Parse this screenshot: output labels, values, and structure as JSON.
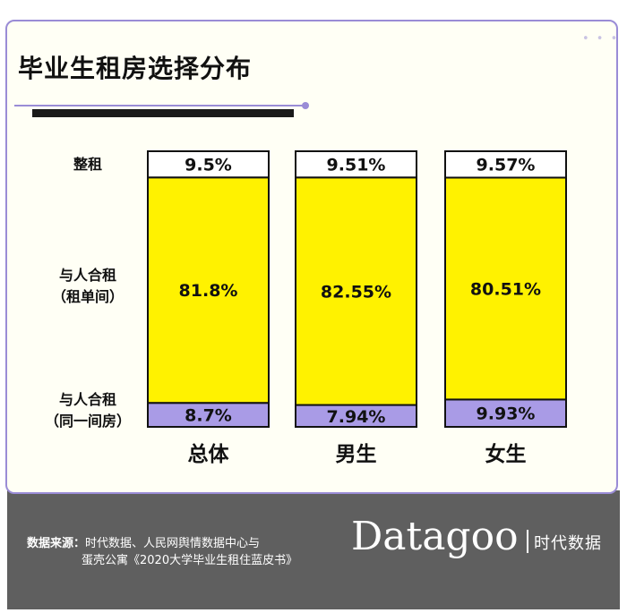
{
  "header": {
    "title": "毕业生租房选择分布"
  },
  "row_labels": [
    {
      "text": "整租"
    },
    {
      "text": "与人合租\n（租单间）"
    },
    {
      "text": "与人合租\n（同一间房）"
    }
  ],
  "chart_data": {
    "type": "bar",
    "stacked": true,
    "normalized": true,
    "categories": [
      "总体",
      "男生",
      "女生"
    ],
    "series": [
      {
        "name": "与人合租（同一间房）",
        "values": [
          8.7,
          7.94,
          9.93
        ],
        "labels": [
          "8.7%",
          "7.94%",
          "9.93%"
        ],
        "color": "#a99be6"
      },
      {
        "name": "与人合租（租单间）",
        "values": [
          81.8,
          82.55,
          80.51
        ],
        "labels": [
          "81.8%",
          "82.55%",
          "80.51%"
        ],
        "color": "#fff200"
      },
      {
        "name": "整租",
        "values": [
          9.5,
          9.51,
          9.57
        ],
        "labels": [
          "9.5%",
          "9.51%",
          "9.57%"
        ],
        "color": "#ffffff"
      }
    ]
  },
  "footer": {
    "source_label": "数据来源：",
    "source_line1": "时代数据、人民网舆情数据中心与",
    "source_line2": "蛋壳公寓《2020大学毕业生租住蓝皮书》",
    "brand": "Datagoo",
    "brand_cn": "时代数据"
  }
}
